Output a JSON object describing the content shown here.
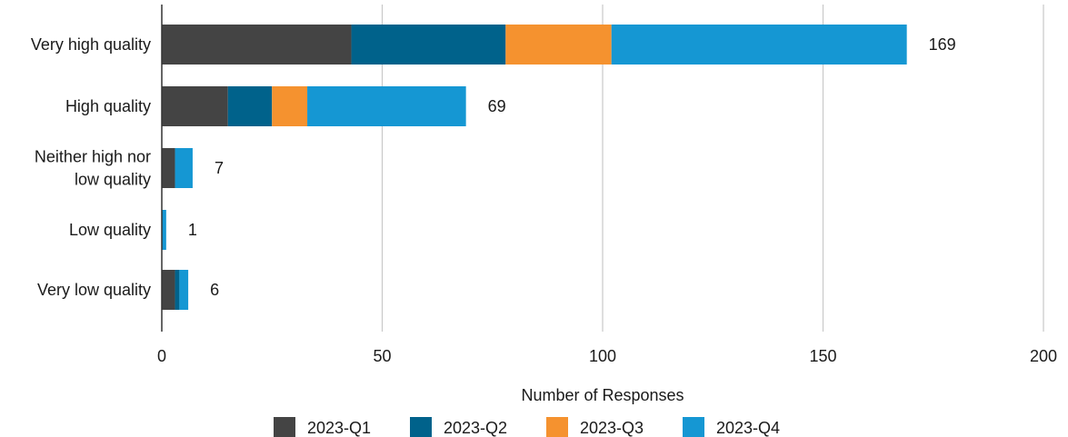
{
  "chart_data": {
    "type": "bar",
    "orientation": "horizontal",
    "stacked": true,
    "categories": [
      [
        "Very high quality"
      ],
      [
        "High quality"
      ],
      [
        "Neither high nor",
        "low quality"
      ],
      [
        "Low quality"
      ],
      [
        "Very low quality"
      ]
    ],
    "series": [
      {
        "name": "2023-Q1",
        "color": "#444444",
        "values": [
          43,
          15,
          3,
          0,
          3
        ]
      },
      {
        "name": "2023-Q2",
        "color": "#00628b",
        "values": [
          35,
          10,
          0,
          0,
          1
        ]
      },
      {
        "name": "2023-Q3",
        "color": "#f5922f",
        "values": [
          24,
          8,
          0,
          0,
          0
        ]
      },
      {
        "name": "2023-Q4",
        "color": "#1597d3",
        "values": [
          67,
          36,
          4,
          1,
          2
        ]
      }
    ],
    "totals": [
      "169",
      "69",
      "7",
      "1",
      "6"
    ],
    "xlim": [
      0,
      200
    ],
    "xticks": [
      0,
      50,
      100,
      150,
      200
    ],
    "xtick_labels": [
      "0",
      "50",
      "100",
      "150",
      "200"
    ],
    "xlabel": "Number of Responses",
    "ylabel": "",
    "title": "",
    "grid": "vertical",
    "legend_position": "bottom"
  }
}
